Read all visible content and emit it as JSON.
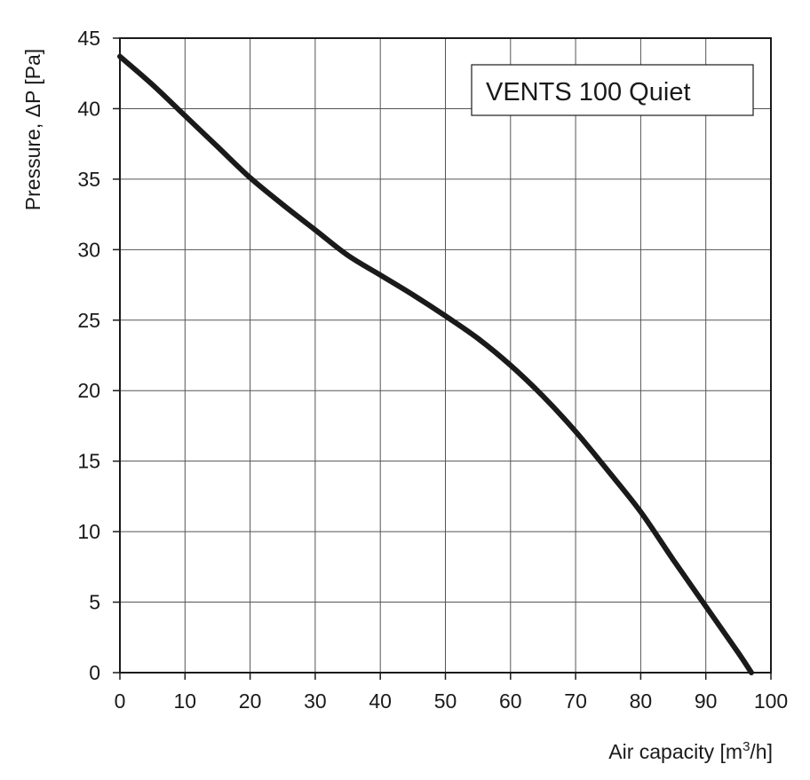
{
  "chart_data": {
    "type": "line",
    "title": "VENTS 100 Quiet",
    "xlabel": "Air capacity [m3/h]",
    "xlabel_parts": {
      "prefix": "Air capacity [m",
      "superscript": "3",
      "suffix": "/h]"
    },
    "ylabel": "Pressure, ΔP [Pa]",
    "xlim": [
      0,
      100
    ],
    "ylim": [
      0,
      45
    ],
    "x_ticks": [
      0,
      10,
      20,
      30,
      40,
      50,
      60,
      70,
      80,
      90,
      100
    ],
    "y_ticks": [
      0,
      5,
      10,
      15,
      20,
      25,
      30,
      35,
      40,
      45
    ],
    "grid": true,
    "legend_position": "top-right",
    "line_color": "#1a1a1a",
    "series": [
      {
        "x": [
          0,
          5,
          10,
          15,
          20,
          25,
          30,
          35,
          40,
          45,
          50,
          55,
          60,
          65,
          70,
          75,
          80,
          85,
          90,
          95,
          97
        ],
        "y": [
          43.7,
          41.7,
          39.5,
          37.3,
          35.1,
          33.2,
          31.4,
          29.6,
          28.2,
          26.8,
          25.3,
          23.7,
          21.8,
          19.6,
          17.1,
          14.3,
          11.4,
          8.0,
          4.7,
          1.4,
          0
        ]
      }
    ]
  }
}
